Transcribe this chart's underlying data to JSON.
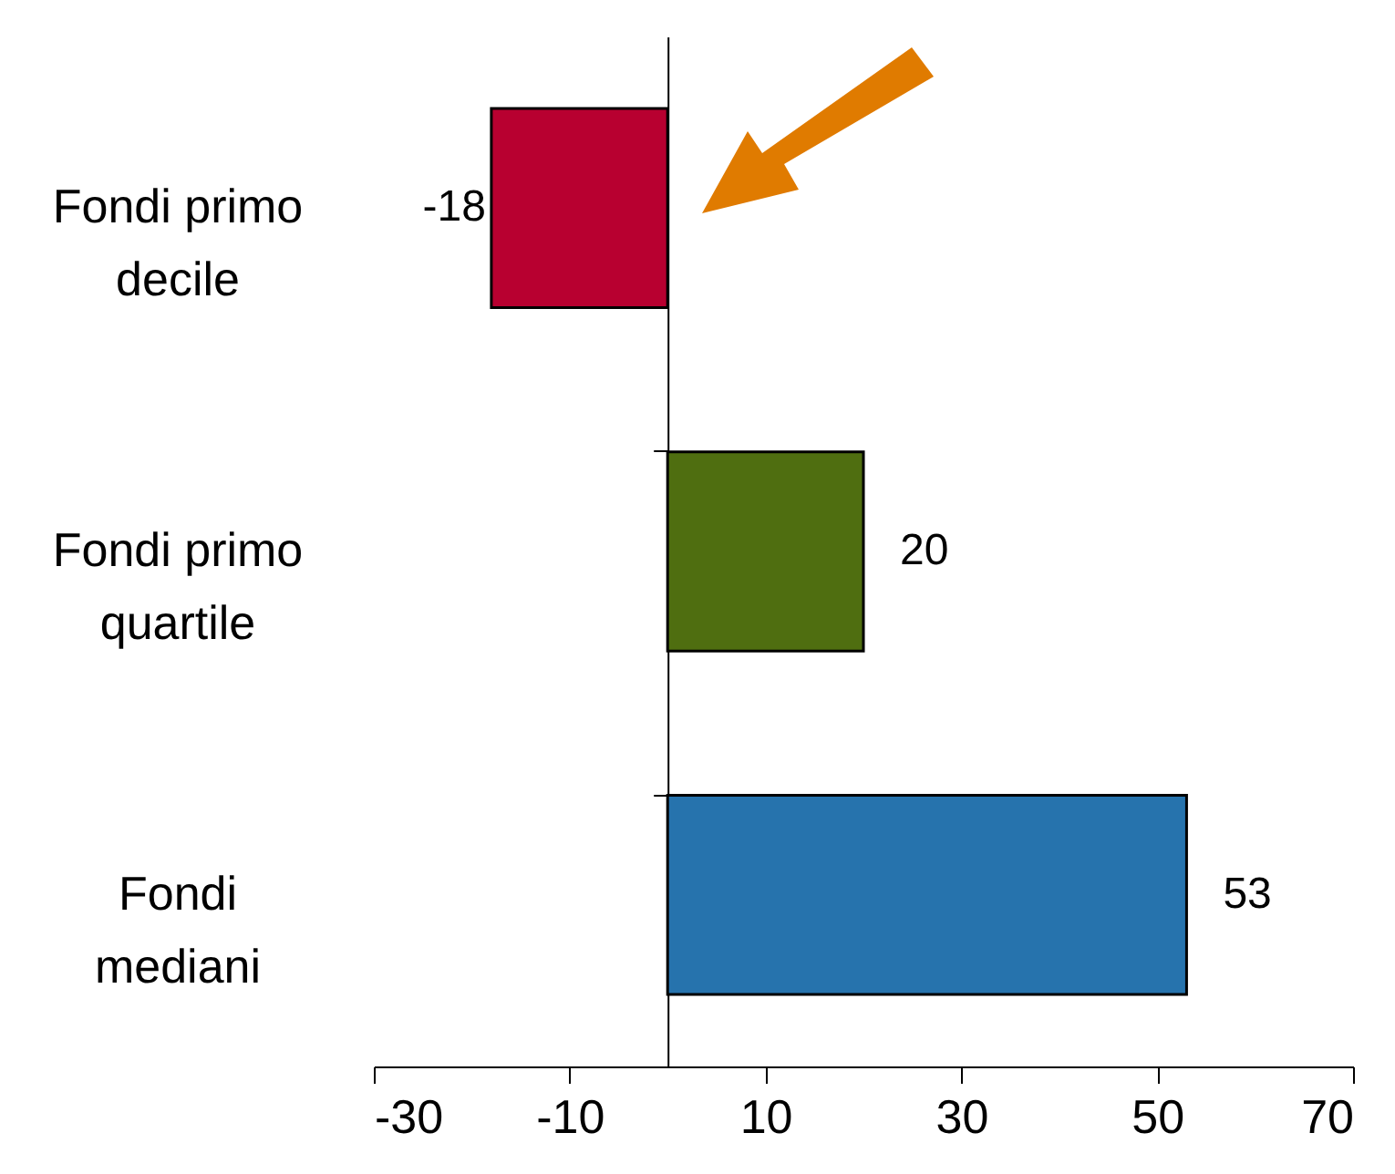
{
  "chart_data": {
    "type": "bar",
    "orientation": "horizontal",
    "categories": [
      "Fondi primo decile",
      "Fondi primo quartile",
      "Fondi mediani"
    ],
    "values": [
      -18,
      20,
      53
    ],
    "colors": [
      "#b80030",
      "#4f6e10",
      "#2673ad"
    ],
    "xlim": [
      -30,
      70
    ],
    "xticks": [
      -30,
      -10,
      10,
      30,
      50,
      70
    ],
    "data_labels": true
  }
}
